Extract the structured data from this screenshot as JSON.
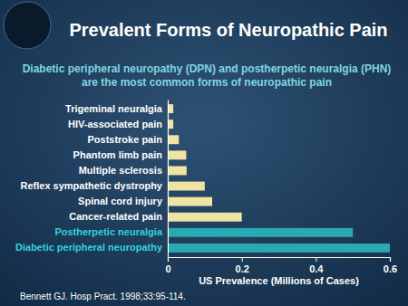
{
  "chart_data": {
    "type": "bar",
    "orientation": "horizontal",
    "title": "Prevalent Forms of Neuropathic Pain",
    "subtitle": "Diabetic peripheral neuropathy (DPN) and postherpetic neuralgia (PHN) are the most common forms of neuropathic pain",
    "xlabel": "US Prevalence (Millions of Cases)",
    "annotations": [
      "Bennett GJ. Hosp Pract. 1998;33:95-114."
    ],
    "categories": [
      "Trigeminal neuralgia",
      "HIV-associated pain",
      "Poststroke pain",
      "Phantom limb pain",
      "Multiple sclerosis",
      "Reflex sympathetic dystrophy",
      "Spinal cord injury",
      "Cancer-related pain",
      "Postherpetic neuralgia",
      "Diabetic peripheral neuropathy"
    ],
    "values": [
      0.015,
      0.015,
      0.03,
      0.05,
      0.051,
      0.1,
      0.12,
      0.2,
      0.5,
      0.6
    ],
    "colors": [
      "#efe4a2",
      "#efe4a2",
      "#efe4a2",
      "#efe4a2",
      "#efe4a2",
      "#efe4a2",
      "#efe4a2",
      "#efe4a2",
      "#2aa9b3",
      "#2aa9b3"
    ],
    "xlim": [
      0,
      0.6
    ],
    "xticks": [
      0,
      0.2,
      0.4,
      0.6
    ],
    "grid": false
  }
}
